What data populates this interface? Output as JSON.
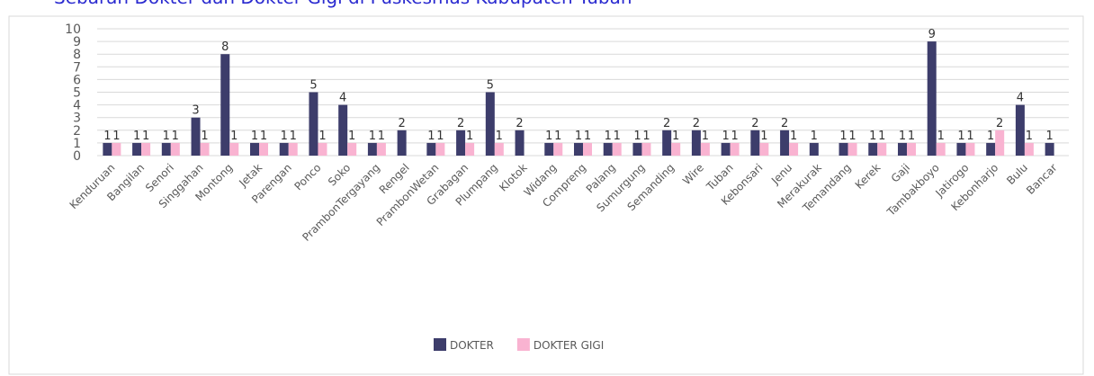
{
  "chart_data": {
    "type": "bar",
    "title": "Sebaran Dokter dan Dokter Gigi di Puskesmas Kabupaten Tuban",
    "categories": [
      "Kenduruan",
      "Bangilan",
      "Senori",
      "Singgahan",
      "Montong",
      "Jetak",
      "Parengan",
      "Ponco",
      "Soko",
      "PrambonTergayang",
      "Rengel",
      "PrambonWetan",
      "Grabagan",
      "Plumpang",
      "Klotok",
      "Widang",
      "Compreng",
      "Palang",
      "Sumurgung",
      "Semanding",
      "Wire",
      "Tuban",
      "Kebonsari",
      "Jenu",
      "Merakurak",
      "Temandang",
      "Kerek",
      "Gaji",
      "Tambakboyo",
      "Jatirogo",
      "Kebonharjo",
      "Bulu",
      "Bancar"
    ],
    "series": [
      {
        "name": "DOKTER",
        "color": "#3d3d6b",
        "values": [
          1,
          1,
          1,
          3,
          8,
          1,
          1,
          5,
          4,
          1,
          2,
          1,
          2,
          5,
          2,
          1,
          1,
          1,
          1,
          2,
          2,
          1,
          2,
          2,
          1,
          1,
          1,
          1,
          9,
          1,
          1,
          4,
          1
        ]
      },
      {
        "name": "DOKTER GIGI",
        "color": "#f9b3d1",
        "values": [
          1,
          1,
          1,
          1,
          1,
          1,
          1,
          1,
          1,
          1,
          null,
          1,
          1,
          1,
          null,
          1,
          1,
          1,
          1,
          1,
          1,
          1,
          1,
          1,
          null,
          1,
          1,
          1,
          1,
          1,
          2,
          1,
          null
        ]
      }
    ],
    "ylim": [
      0,
      10
    ],
    "yticks": [
      0,
      1,
      2,
      3,
      4,
      5,
      6,
      7,
      8,
      9,
      10
    ],
    "grid": true,
    "legend": "bottom"
  }
}
